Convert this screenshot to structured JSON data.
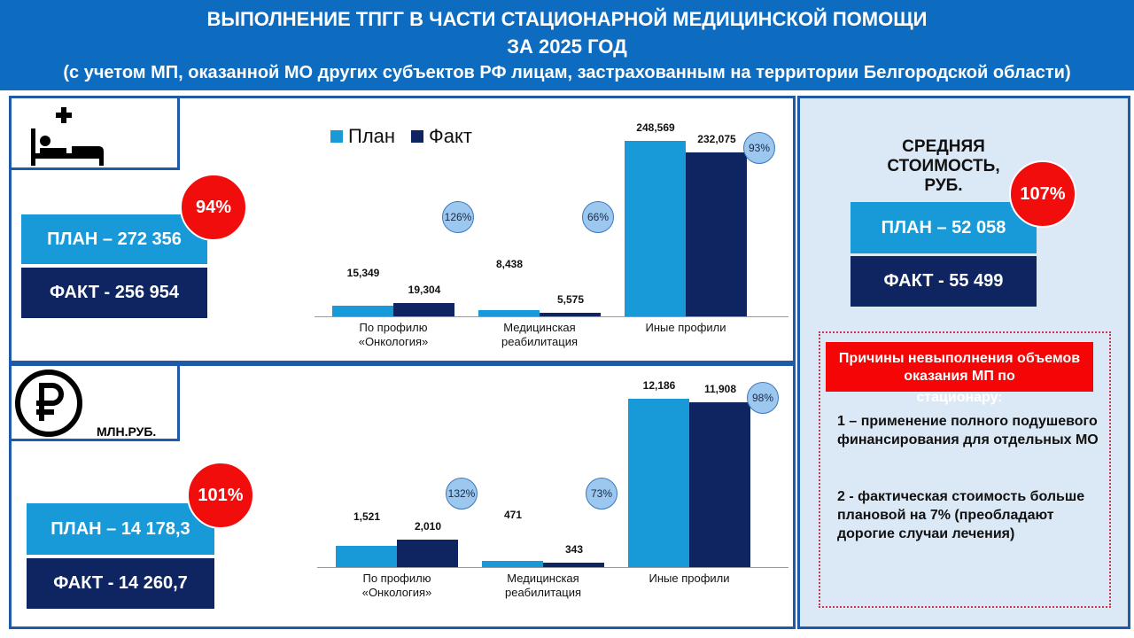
{
  "header": {
    "title_line1": "ВЫПОЛНЕНИЕ ТПГГ В ЧАСТИ СТАЦИОНАРНОЙ МЕДИЦИНСКОЙ ПОМОЩИ",
    "title_line2": "ЗА 2025 ГОД",
    "subtitle": "(с учетом МП, оказанной МО других субъектов РФ лицам, застрахованным на территории Белгородской области)"
  },
  "colors": {
    "plan": "#199ad8",
    "fact": "#0e2561",
    "accent_red": "#f20d0d",
    "header": "#0d6cc0"
  },
  "cases": {
    "icon": "hospital-bed-icon",
    "plan": "ПЛАН – 272 356",
    "fact": "ФАКТ - 256 954",
    "percent": "94%"
  },
  "money": {
    "icon": "ruble-icon",
    "unit": "МЛН.РУБ.",
    "plan": "ПЛАН – 14 178,3",
    "fact": "ФАКТ - 14 260,7",
    "percent": "101%"
  },
  "avg_cost": {
    "title": "СРЕДНЯЯ СТОИМОСТЬ, РУБ.",
    "plan": "ПЛАН – 52 058",
    "fact": "ФАКТ - 55 499",
    "percent": "107%"
  },
  "reasons": {
    "title": "Причины невыполнения объемов оказания МП по",
    "title_overflow": "стационару:",
    "item1": "1 – применение полного подушевого финансирования для отдельных МО",
    "item2": "2 - фактическая стоимость больше плановой на 7% (преобладают дорогие случаи лечения)"
  },
  "chart_data": [
    {
      "type": "bar",
      "legend": [
        "План",
        "Факт"
      ],
      "legend_position": "top",
      "categories": [
        "По профилю «Онкология»",
        "Медицинская реабилитация",
        "Иные профили"
      ],
      "series": [
        {
          "name": "План",
          "values": [
            15349,
            8438,
            248569
          ],
          "labels": [
            "15,349",
            "8,438",
            "248,569"
          ]
        },
        {
          "name": "Факт",
          "values": [
            19304,
            5575,
            232075
          ],
          "labels": [
            "19,304",
            "5,575",
            "232,075"
          ]
        }
      ],
      "percent_labels": [
        "126%",
        "66%",
        "93%"
      ],
      "ylim": [
        0,
        250000
      ]
    },
    {
      "type": "bar",
      "categories": [
        "По профилю «Онкология»",
        "Медицинская реабилитация",
        "Иные профили"
      ],
      "series": [
        {
          "name": "План",
          "values": [
            1521,
            471,
            12186
          ],
          "labels": [
            "1,521",
            "471",
            "12,186"
          ]
        },
        {
          "name": "Факт",
          "values": [
            2010,
            343,
            11908
          ],
          "labels": [
            "2,010",
            "343",
            "11,908"
          ]
        }
      ],
      "percent_labels": [
        "132%",
        "73%",
        "98%"
      ],
      "ylim": [
        0,
        12500
      ]
    }
  ]
}
